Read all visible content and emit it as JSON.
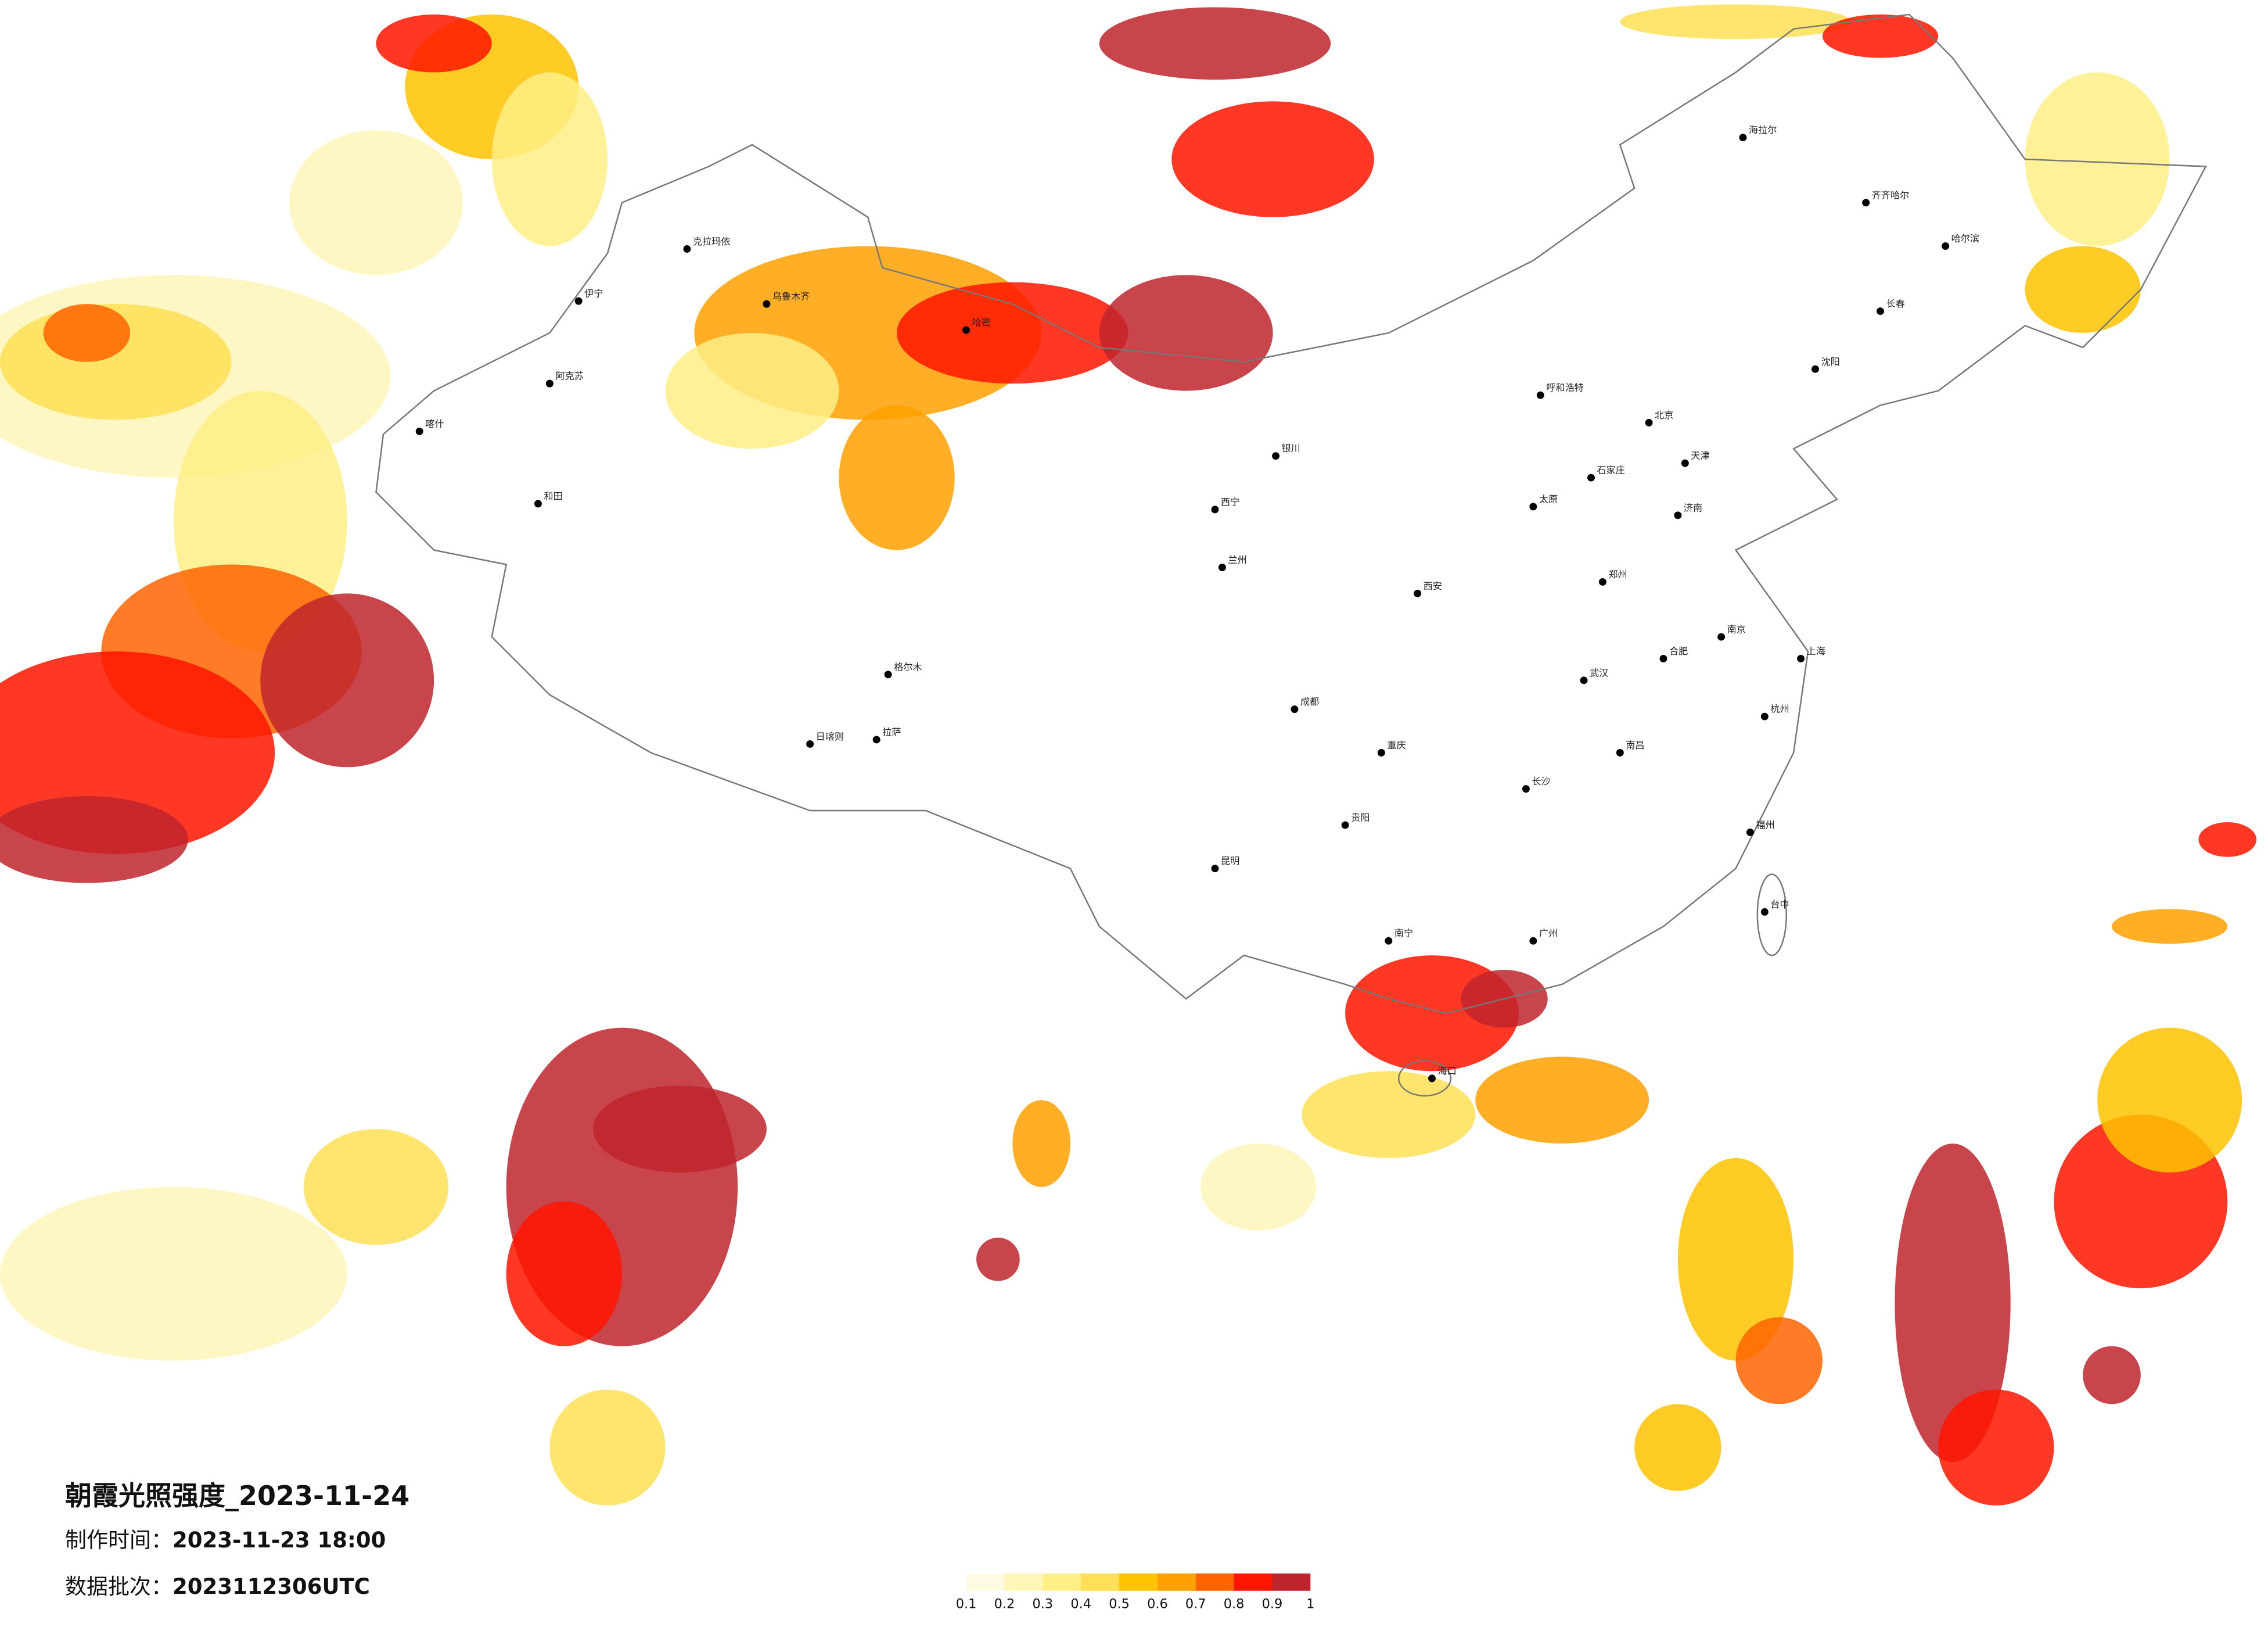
{
  "title": "朝霞光照强度_2023-11-24",
  "made_label": "制作时间：",
  "made_value": "2023-11-23 18:00",
  "batch_label": "数据批次：",
  "batch_value": "2023112306UTC",
  "legend": {
    "ticks": [
      0.1,
      0.2,
      0.3,
      0.4,
      0.5,
      0.6,
      0.7,
      0.8,
      0.9,
      1
    ],
    "colors": [
      "#fffbe3",
      "#fff6b8",
      "#ffef86",
      "#ffdf55",
      "#ffc300",
      "#ffa000",
      "#ff6400",
      "#ff1500",
      "#c0252d"
    ]
  },
  "cities": [
    "克拉玛依",
    "乌鲁木齐",
    "伊宁",
    "阿克苏",
    "和田",
    "喀什",
    "哈密",
    "格尔木",
    "拉萨",
    "日喀则",
    "西宁",
    "兰州",
    "银川",
    "呼和浩特",
    "北京",
    "天津",
    "石家庄",
    "太原",
    "济南",
    "郑州",
    "西安",
    "成都",
    "重庆",
    "贵阳",
    "昆明",
    "南宁",
    "长沙",
    "武汉",
    "南昌",
    "合肥",
    "南京",
    "上海",
    "杭州",
    "福州",
    "广州",
    "海口",
    "台中",
    "沈阳",
    "长春",
    "哈尔滨",
    "海拉尔",
    "齐齐哈尔"
  ]
}
